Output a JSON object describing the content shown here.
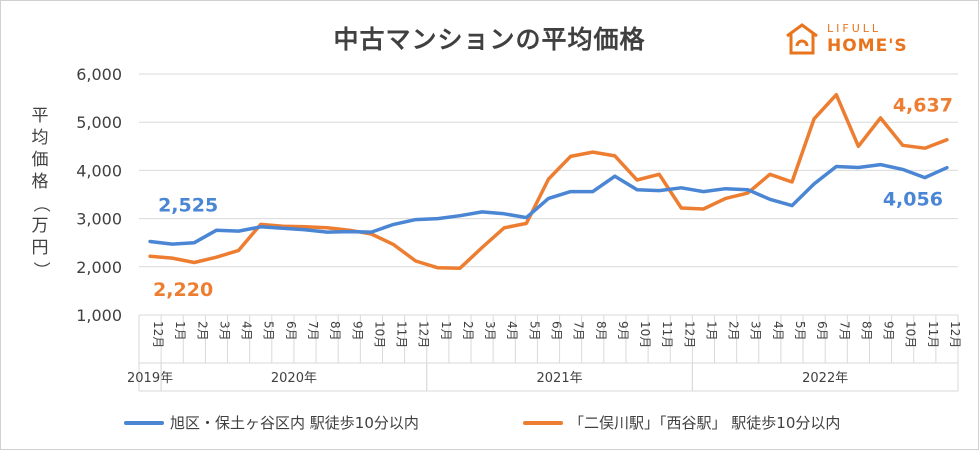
{
  "title": "中古マンションの平均価格",
  "logo": {
    "top": "LIFULL",
    "bottom": "HOME'S"
  },
  "ylabel": "平均価格（万円）",
  "colors": {
    "blue": "#4a86d4",
    "orange": "#ed7d31",
    "grid": "#d9d9d9",
    "text": "#404040"
  },
  "chart_data": {
    "type": "line",
    "title": "中古マンションの平均価格",
    "ylabel": "平均価格（万円）",
    "ylim": [
      1000,
      6000
    ],
    "yticks": [
      1000,
      2000,
      3000,
      4000,
      5000,
      6000
    ],
    "ytick_labels": [
      "1,000",
      "2,000",
      "3,000",
      "4,000",
      "5,000",
      "6,000"
    ],
    "grid": true,
    "legend": "bottom",
    "x": [
      "12月",
      "1月",
      "2月",
      "3月",
      "4月",
      "5月",
      "6月",
      "7月",
      "8月",
      "9月",
      "10月",
      "11月",
      "12月",
      "1月",
      "2月",
      "3月",
      "4月",
      "5月",
      "6月",
      "7月",
      "8月",
      "9月",
      "10月",
      "11月",
      "12月",
      "1月",
      "2月",
      "3月",
      "4月",
      "5月",
      "6月",
      "7月",
      "8月",
      "9月",
      "10月",
      "11月",
      "12月"
    ],
    "years": [
      {
        "label": "2019年",
        "start": 0,
        "end": 0
      },
      {
        "label": "2020年",
        "start": 1,
        "end": 12
      },
      {
        "label": "2021年",
        "start": 13,
        "end": 24
      },
      {
        "label": "2022年",
        "start": 25,
        "end": 36
      }
    ],
    "series": [
      {
        "name": "旭区・保土ヶ谷区内 駅徒歩10分以内",
        "color": "#4a86d4",
        "values": [
          2525,
          2470,
          2500,
          2760,
          2740,
          2830,
          2800,
          2770,
          2720,
          2730,
          2720,
          2880,
          2980,
          3000,
          3060,
          3140,
          3100,
          3020,
          3420,
          3560,
          3560,
          3880,
          3600,
          3580,
          3640,
          3560,
          3620,
          3600,
          3400,
          3270,
          3720,
          4080,
          4060,
          4120,
          4020,
          3850,
          4056
        ]
      },
      {
        "name": "「二俣川駅」「西谷駅」 駅徒歩10分以内",
        "color": "#ed7d31",
        "values": [
          2220,
          2180,
          2090,
          2200,
          2340,
          2880,
          2840,
          2830,
          2810,
          2760,
          2680,
          2460,
          2120,
          1980,
          1970,
          2400,
          2810,
          2900,
          3820,
          4290,
          4380,
          4300,
          3800,
          3920,
          3220,
          3200,
          3420,
          3530,
          3920,
          3760,
          5070,
          5570,
          4500,
          5090,
          4520,
          4460,
          4637
        ]
      }
    ],
    "annotations": [
      {
        "text": "2,525",
        "series": 0,
        "index": 0
      },
      {
        "text": "4,056",
        "series": 0,
        "index": 36
      },
      {
        "text": "2,220",
        "series": 1,
        "index": 0
      },
      {
        "text": "4,637",
        "series": 1,
        "index": 36
      }
    ]
  }
}
